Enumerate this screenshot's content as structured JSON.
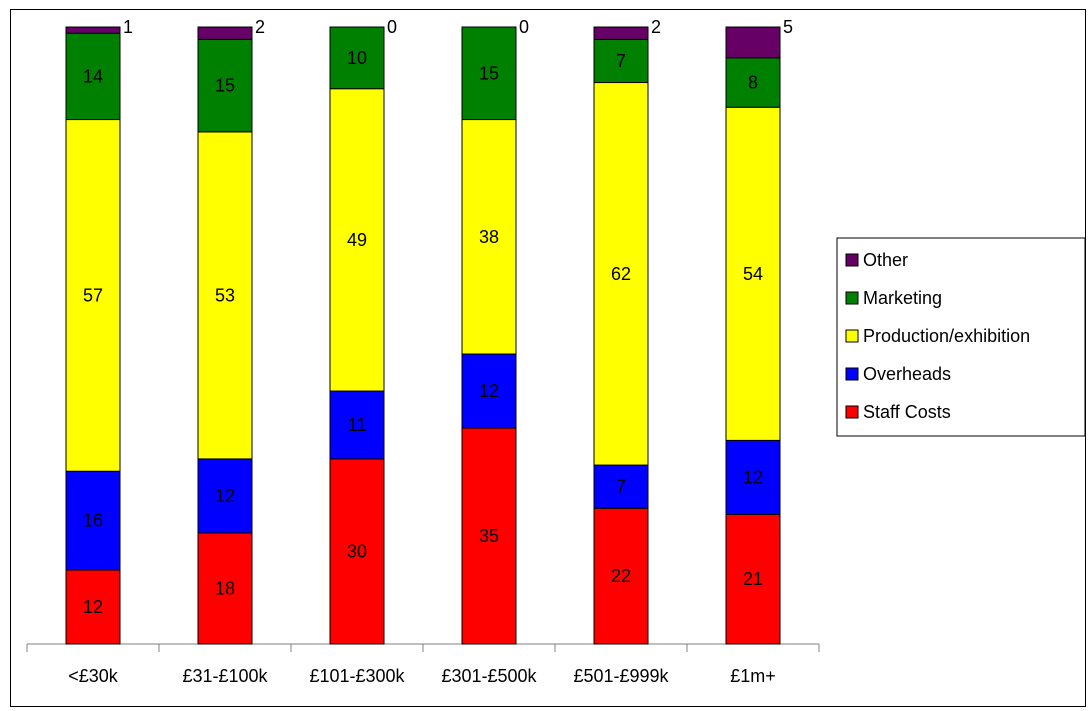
{
  "chart_data": {
    "type": "bar",
    "stacked": true,
    "normalized_percent": true,
    "categories": [
      "<£30k",
      "£31-£100k",
      "£101-£300k",
      "£301-£500k",
      "£501-£999k",
      "£1m+"
    ],
    "series": [
      {
        "name": "Staff Costs",
        "color": "#ff0000",
        "values": [
          12,
          18,
          30,
          35,
          22,
          21
        ]
      },
      {
        "name": "Overheads",
        "color": "#0000ff",
        "values": [
          16,
          12,
          11,
          12,
          7,
          12
        ]
      },
      {
        "name": "Production/exhibition",
        "color": "#ffff00",
        "values": [
          57,
          53,
          49,
          38,
          62,
          54
        ]
      },
      {
        "name": "Marketing",
        "color": "#008000",
        "values": [
          14,
          15,
          10,
          15,
          7,
          8
        ]
      },
      {
        "name": "Other",
        "color": "#660066",
        "values": [
          1,
          2,
          0,
          0,
          2,
          5
        ]
      }
    ],
    "legend_order": [
      "Other",
      "Marketing",
      "Production/exhibition",
      "Overheads",
      "Staff Costs"
    ],
    "legend_position": "right",
    "grid": false,
    "data_labels": true,
    "ylim": [
      0,
      100
    ]
  }
}
